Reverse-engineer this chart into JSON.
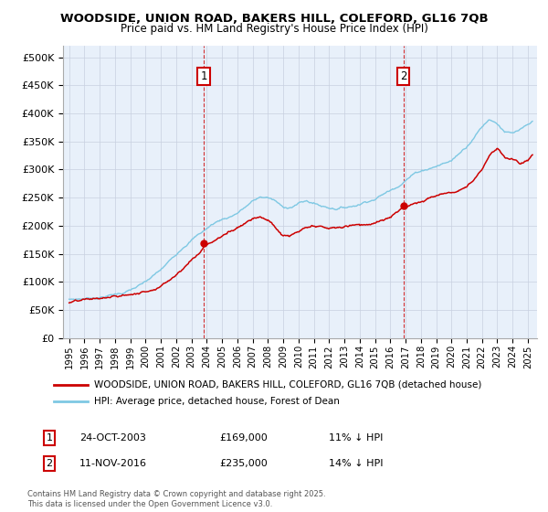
{
  "title": "WOODSIDE, UNION ROAD, BAKERS HILL, COLEFORD, GL16 7QB",
  "subtitle": "Price paid vs. HM Land Registry's House Price Index (HPI)",
  "legend_line1": "WOODSIDE, UNION ROAD, BAKERS HILL, COLEFORD, GL16 7QB (detached house)",
  "legend_line2": "HPI: Average price, detached house, Forest of Dean",
  "annotation1_date": "24-OCT-2003",
  "annotation1_price": "£169,000",
  "annotation1_hpi": "11% ↓ HPI",
  "annotation2_date": "11-NOV-2016",
  "annotation2_price": "£235,000",
  "annotation2_hpi": "14% ↓ HPI",
  "footer": "Contains HM Land Registry data © Crown copyright and database right 2025.\nThis data is licensed under the Open Government Licence v3.0.",
  "hpi_color": "#7ec8e3",
  "price_color": "#cc0000",
  "annotation_color": "#cc0000",
  "background_color": "#e8f0fa",
  "grid_color": "#c8d0e0",
  "ylim": [
    0,
    520000
  ],
  "yticks": [
    0,
    50000,
    100000,
    150000,
    200000,
    250000,
    300000,
    350000,
    400000,
    450000,
    500000
  ],
  "sale1_x": 2003.81,
  "sale2_x": 2016.86,
  "hpi_data": [
    [
      1995.0,
      68000
    ],
    [
      1995.5,
      69000
    ],
    [
      1996.0,
      70000
    ],
    [
      1996.5,
      72000
    ],
    [
      1997.0,
      74000
    ],
    [
      1997.5,
      77000
    ],
    [
      1998.0,
      80000
    ],
    [
      1998.5,
      83000
    ],
    [
      1999.0,
      88000
    ],
    [
      1999.5,
      94000
    ],
    [
      2000.0,
      100000
    ],
    [
      2000.5,
      110000
    ],
    [
      2001.0,
      120000
    ],
    [
      2001.5,
      133000
    ],
    [
      2002.0,
      148000
    ],
    [
      2002.5,
      165000
    ],
    [
      2003.0,
      178000
    ],
    [
      2003.5,
      188000
    ],
    [
      2004.0,
      198000
    ],
    [
      2004.5,
      208000
    ],
    [
      2005.0,
      215000
    ],
    [
      2005.5,
      220000
    ],
    [
      2006.0,
      228000
    ],
    [
      2006.5,
      238000
    ],
    [
      2007.0,
      248000
    ],
    [
      2007.5,
      255000
    ],
    [
      2008.0,
      255000
    ],
    [
      2008.5,
      248000
    ],
    [
      2009.0,
      235000
    ],
    [
      2009.5,
      238000
    ],
    [
      2010.0,
      245000
    ],
    [
      2010.5,
      248000
    ],
    [
      2011.0,
      245000
    ],
    [
      2011.5,
      240000
    ],
    [
      2012.0,
      238000
    ],
    [
      2012.5,
      238000
    ],
    [
      2013.0,
      240000
    ],
    [
      2013.5,
      243000
    ],
    [
      2014.0,
      248000
    ],
    [
      2014.5,
      255000
    ],
    [
      2015.0,
      260000
    ],
    [
      2015.5,
      268000
    ],
    [
      2016.0,
      275000
    ],
    [
      2016.5,
      285000
    ],
    [
      2017.0,
      298000
    ],
    [
      2017.5,
      308000
    ],
    [
      2018.0,
      315000
    ],
    [
      2018.5,
      320000
    ],
    [
      2019.0,
      325000
    ],
    [
      2019.5,
      330000
    ],
    [
      2020.0,
      335000
    ],
    [
      2020.5,
      348000
    ],
    [
      2021.0,
      362000
    ],
    [
      2021.5,
      382000
    ],
    [
      2022.0,
      400000
    ],
    [
      2022.5,
      415000
    ],
    [
      2023.0,
      408000
    ],
    [
      2023.5,
      395000
    ],
    [
      2024.0,
      390000
    ],
    [
      2024.5,
      395000
    ],
    [
      2025.0,
      400000
    ],
    [
      2025.3,
      405000
    ]
  ],
  "price_data": [
    [
      1995.0,
      63000
    ],
    [
      1995.5,
      63500
    ],
    [
      1996.0,
      64000
    ],
    [
      1996.5,
      65000
    ],
    [
      1997.0,
      66000
    ],
    [
      1997.5,
      67000
    ],
    [
      1998.0,
      68000
    ],
    [
      1998.5,
      70000
    ],
    [
      1999.0,
      72000
    ],
    [
      1999.5,
      75000
    ],
    [
      2000.0,
      78000
    ],
    [
      2000.5,
      85000
    ],
    [
      2001.0,
      93000
    ],
    [
      2001.5,
      103000
    ],
    [
      2002.0,
      116000
    ],
    [
      2002.5,
      130000
    ],
    [
      2003.0,
      144000
    ],
    [
      2003.5,
      156000
    ],
    [
      2003.81,
      169000
    ],
    [
      2004.0,
      172000
    ],
    [
      2004.5,
      180000
    ],
    [
      2005.0,
      188000
    ],
    [
      2005.5,
      195000
    ],
    [
      2006.0,
      205000
    ],
    [
      2006.5,
      215000
    ],
    [
      2007.0,
      225000
    ],
    [
      2007.5,
      230000
    ],
    [
      2008.0,
      225000
    ],
    [
      2008.5,
      210000
    ],
    [
      2009.0,
      195000
    ],
    [
      2009.5,
      195000
    ],
    [
      2010.0,
      200000
    ],
    [
      2010.5,
      205000
    ],
    [
      2011.0,
      205000
    ],
    [
      2011.5,
      202000
    ],
    [
      2012.0,
      200000
    ],
    [
      2012.5,
      200000
    ],
    [
      2013.0,
      202000
    ],
    [
      2013.5,
      205000
    ],
    [
      2014.0,
      208000
    ],
    [
      2014.5,
      210000
    ],
    [
      2015.0,
      212000
    ],
    [
      2015.5,
      215000
    ],
    [
      2016.0,
      220000
    ],
    [
      2016.5,
      228000
    ],
    [
      2016.86,
      235000
    ],
    [
      2017.0,
      237000
    ],
    [
      2017.5,
      245000
    ],
    [
      2018.0,
      252000
    ],
    [
      2018.5,
      258000
    ],
    [
      2019.0,
      262000
    ],
    [
      2019.5,
      265000
    ],
    [
      2020.0,
      268000
    ],
    [
      2020.5,
      275000
    ],
    [
      2021.0,
      285000
    ],
    [
      2021.5,
      300000
    ],
    [
      2022.0,
      320000
    ],
    [
      2022.5,
      345000
    ],
    [
      2023.0,
      358000
    ],
    [
      2023.5,
      345000
    ],
    [
      2024.0,
      338000
    ],
    [
      2024.5,
      330000
    ],
    [
      2025.0,
      335000
    ],
    [
      2025.3,
      345000
    ]
  ]
}
